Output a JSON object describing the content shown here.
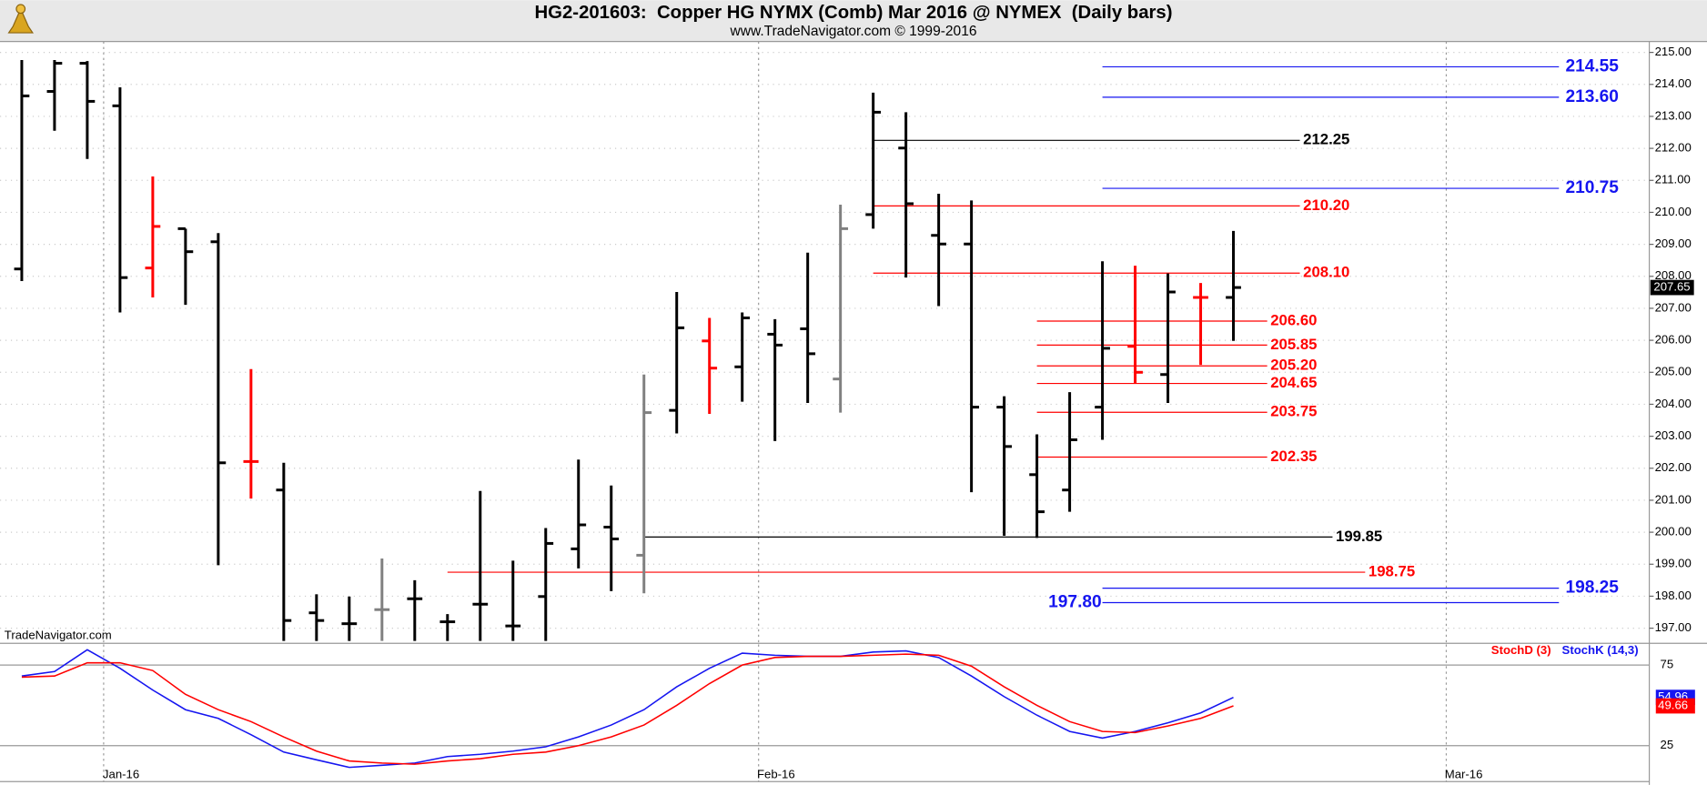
{
  "chart_data": [
    {
      "type": "ohlc",
      "title": "HG2-201603:  Copper HG NYMX (Comb) Mar 2016 @ NYMEX  (Daily bars)",
      "subtitle": "www.TradeNavigator.com © 1999-2016",
      "watermark": "TradeNavigator.com",
      "categories": [
        null,
        null,
        null,
        null,
        null,
        null,
        null,
        null,
        null,
        null,
        null,
        null,
        null,
        null,
        null,
        null,
        null,
        null,
        null,
        null,
        null,
        null,
        null,
        null,
        null,
        null,
        null,
        null,
        null,
        null,
        null,
        null,
        null,
        null,
        null,
        null,
        null,
        null
      ],
      "xlim": [
        -0.665,
        49.7
      ],
      "xticks": [
        {
          "value": 2.5,
          "label": "Jan-16"
        },
        {
          "value": 22.5,
          "label": "Feb-16"
        },
        {
          "value": 43.5,
          "label": "Mar-16"
        }
      ],
      "ylim": [
        196.56,
        215.34
      ],
      "yticks": [
        {
          "value": 197,
          "label": "197.00"
        },
        {
          "value": 198,
          "label": "198.00"
        },
        {
          "value": 199,
          "label": "199.00"
        },
        {
          "value": 200,
          "label": "200.00"
        },
        {
          "value": 201,
          "label": "201.00"
        },
        {
          "value": 202,
          "label": "202.00"
        },
        {
          "value": 203,
          "label": "203.00"
        },
        {
          "value": 204,
          "label": "204.00"
        },
        {
          "value": 205,
          "label": "205.00"
        },
        {
          "value": 206,
          "label": "206.00"
        },
        {
          "value": 207,
          "label": "207.00"
        },
        {
          "value": 208,
          "label": "208.00"
        },
        {
          "value": 209,
          "label": "209.00"
        },
        {
          "value": 210,
          "label": "210.00"
        },
        {
          "value": 211,
          "label": "211.00"
        },
        {
          "value": 212,
          "label": "212.00"
        },
        {
          "value": 213,
          "label": "213.00"
        },
        {
          "value": 214,
          "label": "214.00"
        },
        {
          "value": 215,
          "label": "215.00"
        }
      ],
      "grid": true,
      "open": [
        208.23,
        213.78,
        214.66,
        213.33,
        208.26,
        209.49,
        209.08,
        202.21,
        201.32,
        197.48,
        197.14,
        197.58,
        197.92,
        197.2,
        197.75,
        197.07,
        197.99,
        199.48,
        200.16,
        199.28,
        203.81,
        205.98,
        205.17,
        206.19,
        206.36,
        204.79,
        209.93,
        212.01,
        209.28,
        209.01,
        203.91,
        201.8,
        201.32,
        203.91,
        205.81,
        204.93,
        207.34,
        207.34
      ],
      "high": [
        214.76,
        214.76,
        214.73,
        213.91,
        211.12,
        209.49,
        209.35,
        205.1,
        202.17,
        198.06,
        197.99,
        199.18,
        198.5,
        197.44,
        201.29,
        199.11,
        200.13,
        202.27,
        201.46,
        204.93,
        207.51,
        206.7,
        206.87,
        206.66,
        208.74,
        210.24,
        213.74,
        213.13,
        210.58,
        210.37,
        204.25,
        203.06,
        204.38,
        208.47,
        208.33,
        208.09,
        207.79,
        209.42
      ],
      "low": [
        207.85,
        212.55,
        211.67,
        206.87,
        207.34,
        207.11,
        198.97,
        201.05,
        196.6,
        196.6,
        196.6,
        196.6,
        196.6,
        196.6,
        196.6,
        196.6,
        196.6,
        198.87,
        198.16,
        198.09,
        203.09,
        203.7,
        204.08,
        202.85,
        204.04,
        203.74,
        209.49,
        207.96,
        207.07,
        201.25,
        199.89,
        199.82,
        200.64,
        202.89,
        204.66,
        204.04,
        205.23,
        205.98
      ],
      "close": [
        213.64,
        214.66,
        213.47,
        207.96,
        209.56,
        208.77,
        202.17,
        202.21,
        197.24,
        197.24,
        197.14,
        197.58,
        197.92,
        197.2,
        197.75,
        197.07,
        199.65,
        200.23,
        199.79,
        203.74,
        206.39,
        205.13,
        206.7,
        205.85,
        205.58,
        209.49,
        213.13,
        210.27,
        209.01,
        203.91,
        202.68,
        200.64,
        202.89,
        205.75,
        205.0,
        207.51,
        207.34,
        207.65
      ],
      "bar_colors": [
        "#000000",
        "#000000",
        "#000000",
        "#000000",
        "#ff0000",
        "#000000",
        "#000000",
        "#ff0000",
        "#000000",
        "#000000",
        "#000000",
        "#808080",
        "#000000",
        "#000000",
        "#000000",
        "#000000",
        "#000000",
        "#000000",
        "#000000",
        "#808080",
        "#000000",
        "#ff0000",
        "#000000",
        "#000000",
        "#000000",
        "#808080",
        "#000000",
        "#000000",
        "#000000",
        "#000000",
        "#000000",
        "#000000",
        "#000000",
        "#000000",
        "#ff0000",
        "#000000",
        "#ff0000",
        "#000000"
      ],
      "last_price": 207.65,
      "levels": {
        "values": [
          214.55,
          213.6,
          212.25,
          210.75,
          210.2,
          208.1,
          206.6,
          205.85,
          205.2,
          204.65,
          203.75,
          202.35,
          199.85,
          198.75,
          198.25,
          197.8
        ],
        "value_labels": [
          "214.55",
          "213.60",
          "212.25",
          "210.75",
          "210.20",
          "208.10",
          "206.60",
          "205.85",
          "205.20",
          "204.65",
          "203.75",
          "202.35",
          "199.85",
          "198.75",
          "198.25",
          "197.80"
        ],
        "colors": [
          "#1515f0",
          "#1515f0",
          "#000000",
          "#1515f0",
          "#ff0000",
          "#ff0000",
          "#ff0000",
          "#ff0000",
          "#ff0000",
          "#ff0000",
          "#ff0000",
          "#ff0000",
          "#000000",
          "#ff0000",
          "#1515f0",
          "#1515f0"
        ]
      }
    },
    {
      "type": "line",
      "xlim": [
        -0.665,
        49.7
      ],
      "ylim": [
        2.7,
        87.8
      ],
      "yticks": [
        25,
        75
      ],
      "series": [
        {
          "name": "StochK (14,3)",
          "color": "#1515f0",
          "values": [
            68.2,
            71,
            84.5,
            73,
            59.5,
            47.3,
            41.9,
            31.8,
            21,
            16.2,
            11.5,
            12.8,
            14.2,
            18.2,
            19.6,
            21.6,
            24.3,
            30.4,
            37.8,
            47.3,
            61.5,
            73,
            82.4,
            81.1,
            80.4,
            80.4,
            83.1,
            83.8,
            79.7,
            68.2,
            55.4,
            43.9,
            33.8,
            29.7,
            33.8,
            39.2,
            45.3,
            54.96
          ]
        },
        {
          "name": "StochD (3)",
          "color": "#ff0000",
          "values": [
            67.5,
            68.2,
            76.4,
            76.4,
            71.6,
            56.8,
            47.3,
            39.9,
            30.4,
            21.6,
            15.5,
            14.2,
            13.5,
            15.5,
            16.9,
            19.6,
            21,
            25,
            30.4,
            37.8,
            50,
            63.5,
            75,
            79.7,
            80.4,
            80.4,
            81.1,
            81.8,
            81.1,
            74.3,
            61.5,
            50,
            39.9,
            33.8,
            33.1,
            37.2,
            41.9,
            49.66
          ]
        }
      ]
    }
  ]
}
